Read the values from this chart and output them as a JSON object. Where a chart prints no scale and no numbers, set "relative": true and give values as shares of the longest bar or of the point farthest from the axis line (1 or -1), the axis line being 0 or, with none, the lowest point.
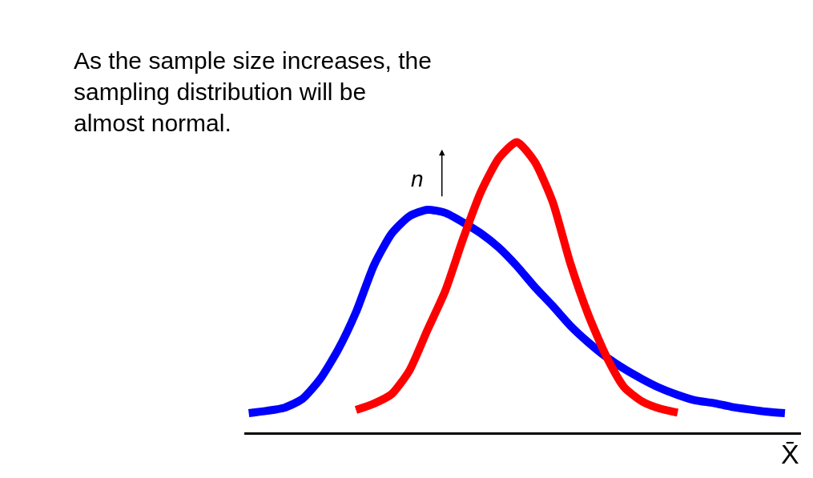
{
  "chart_data": {
    "type": "line",
    "relative": true,
    "title": "As the sample size increases, the\nsampling distribution will be\nalmost normal.",
    "xlabel": "X̄",
    "annotations": [
      "n"
    ],
    "marker": "none",
    "line_style": "solid",
    "categories": [
      null,
      null,
      null,
      null,
      null,
      null,
      null,
      null,
      null,
      null,
      null,
      null,
      null,
      null,
      null,
      null,
      null,
      null,
      null,
      null,
      null,
      null,
      null,
      null,
      null,
      null,
      null,
      null,
      null,
      null,
      null
    ],
    "series": [
      {
        "color": "#0000ff",
        "values": [
          0.066,
          0.074,
          0.085,
          0.115,
          0.184,
          0.285,
          0.414,
          0.575,
          0.685,
          0.745,
          0.767,
          0.756,
          0.723,
          0.685,
          0.636,
          0.573,
          0.501,
          0.436,
          0.367,
          0.31,
          0.26,
          0.219,
          0.184,
          0.153,
          0.129,
          0.11,
          0.101,
          0.088,
          0.079,
          0.071,
          0.066
        ]
      },
      {
        "color": "#ff0000",
        "values": [
          null,
          null,
          null,
          null,
          null,
          null,
          0.077,
          0.099,
          0.132,
          0.214,
          0.353,
          0.488,
          0.668,
          0.83,
          0.945,
          1,
          0.932,
          0.795,
          0.581,
          0.405,
          0.263,
          0.156,
          0.107,
          0.082,
          0.068,
          null,
          null,
          null,
          null,
          null,
          null
        ]
      }
    ]
  }
}
